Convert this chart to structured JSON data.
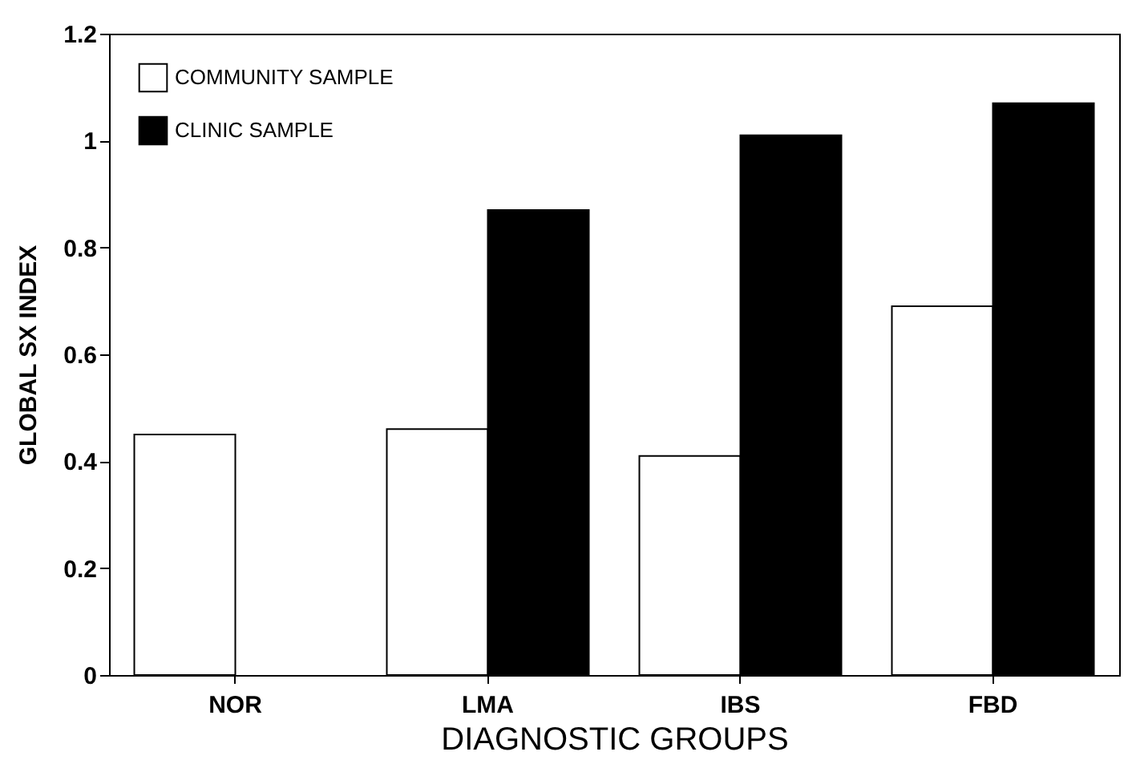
{
  "chart_data": {
    "type": "bar",
    "xlabel": "DIAGNOSTIC GROUPS",
    "ylabel": "GLOBAL SX INDEX",
    "categories": [
      "NOR",
      "LMA",
      "IBS",
      "FBD"
    ],
    "series": [
      {
        "name": "COMMUNITY SAMPLE",
        "color": "#ffffff",
        "values": [
          0.45,
          0.46,
          0.41,
          0.69
        ]
      },
      {
        "name": "CLINIC SAMPLE",
        "color": "#000000",
        "values": [
          null,
          0.87,
          1.01,
          1.07
        ]
      }
    ],
    "ylim": [
      0,
      1.2
    ],
    "yticks": [
      0,
      0.2,
      0.4,
      0.6,
      0.8,
      1,
      1.2
    ],
    "legend": "top left"
  }
}
